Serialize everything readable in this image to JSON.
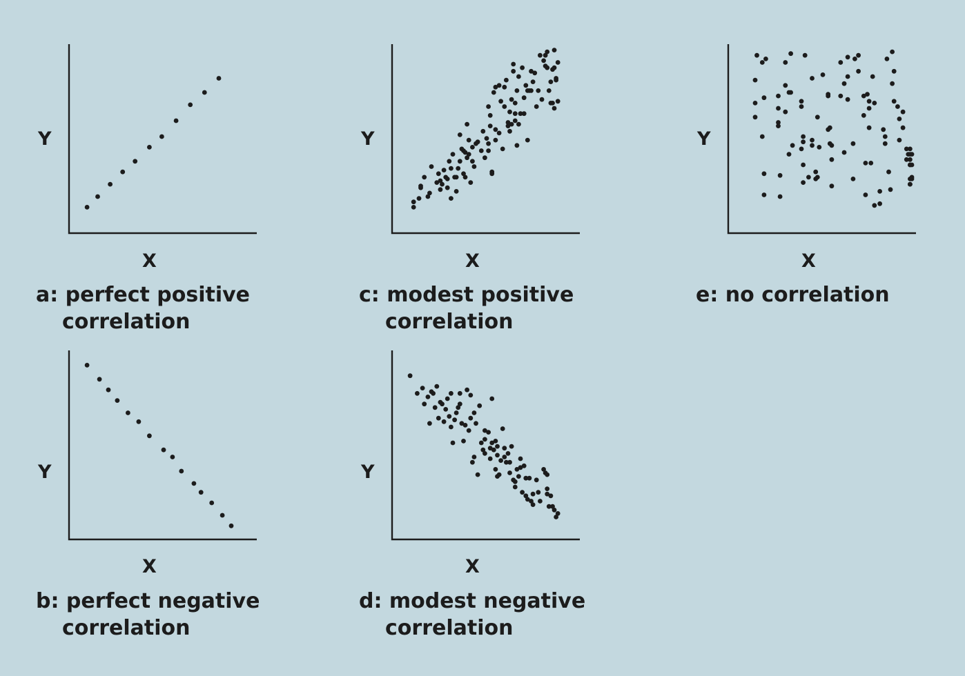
{
  "background": "#c3d8df",
  "ink_color": "#1c1c1c",
  "chart_data": [
    {
      "id": "a",
      "type": "scatter",
      "xlabel": "X",
      "ylabel": "Y",
      "caption": [
        "a: perfect positive",
        "correlation"
      ],
      "xlim": [
        0,
        100
      ],
      "ylim": [
        0,
        100
      ],
      "grid": false,
      "points": [
        [
          7,
          10
        ],
        [
          13,
          16
        ],
        [
          20,
          23
        ],
        [
          27,
          30
        ],
        [
          34,
          36
        ],
        [
          42,
          44
        ],
        [
          49,
          50
        ],
        [
          57,
          59
        ],
        [
          65,
          68
        ],
        [
          73,
          75
        ],
        [
          81,
          83
        ]
      ]
    },
    {
      "id": "b",
      "type": "scatter",
      "xlabel": "X",
      "ylabel": "Y",
      "caption": [
        "b: perfect negative",
        "correlation"
      ],
      "xlim": [
        0,
        100
      ],
      "ylim": [
        0,
        100
      ],
      "grid": false,
      "points": [
        [
          7,
          94
        ],
        [
          14,
          86
        ],
        [
          19,
          80
        ],
        [
          24,
          74
        ],
        [
          30,
          67
        ],
        [
          36,
          62
        ],
        [
          42,
          54
        ],
        [
          50,
          46
        ],
        [
          55,
          42
        ],
        [
          60,
          34
        ],
        [
          67,
          27
        ],
        [
          71,
          22
        ],
        [
          77,
          16
        ],
        [
          83,
          9
        ],
        [
          88,
          3
        ]
      ]
    },
    {
      "id": "c",
      "type": "scatter",
      "xlabel": "X",
      "ylabel": "Y",
      "caption": [
        "c: modest positive",
        "correlation"
      ],
      "xlim": [
        0,
        100
      ],
      "ylim": [
        0,
        100
      ],
      "grid": false,
      "points": [
        [
          9,
          10
        ],
        [
          9,
          13
        ],
        [
          12,
          15
        ],
        [
          13,
          21
        ],
        [
          13,
          22
        ],
        [
          15,
          27
        ],
        [
          17,
          16
        ],
        [
          18,
          18
        ],
        [
          19,
          33
        ],
        [
          22,
          24
        ],
        [
          23,
          29
        ],
        [
          24,
          25
        ],
        [
          24,
          20
        ],
        [
          25,
          23
        ],
        [
          26,
          31
        ],
        [
          27,
          27
        ],
        [
          28,
          26
        ],
        [
          28,
          21
        ],
        [
          29,
          36
        ],
        [
          30,
          15
        ],
        [
          30,
          32
        ],
        [
          31,
          40
        ],
        [
          32,
          27
        ],
        [
          33,
          19
        ],
        [
          33,
          27
        ],
        [
          34,
          32
        ],
        [
          35,
          36
        ],
        [
          35,
          51
        ],
        [
          36,
          43
        ],
        [
          37,
          29
        ],
        [
          37,
          42
        ],
        [
          38,
          41
        ],
        [
          38,
          27
        ],
        [
          39,
          38
        ],
        [
          39,
          57
        ],
        [
          40,
          40
        ],
        [
          40,
          48
        ],
        [
          41,
          24
        ],
        [
          42,
          36
        ],
        [
          42,
          44
        ],
        [
          43,
          33
        ],
        [
          44,
          46
        ],
        [
          45,
          47
        ],
        [
          47,
          42
        ],
        [
          48,
          53
        ],
        [
          49,
          38
        ],
        [
          50,
          49
        ],
        [
          51,
          46
        ],
        [
          51,
          42
        ],
        [
          51,
          67
        ],
        [
          52,
          56
        ],
        [
          52,
          62
        ],
        [
          53,
          30
        ],
        [
          53,
          29
        ],
        [
          54,
          75
        ],
        [
          55,
          54
        ],
        [
          55,
          48
        ],
        [
          55,
          78
        ],
        [
          57,
          79
        ],
        [
          57,
          52
        ],
        [
          58,
          70
        ],
        [
          59,
          43
        ],
        [
          60,
          78
        ],
        [
          60,
          67
        ],
        [
          61,
          82
        ],
        [
          62,
          58
        ],
        [
          62,
          56
        ],
        [
          63,
          64
        ],
        [
          63,
          53
        ],
        [
          64,
          57
        ],
        [
          64,
          71
        ],
        [
          65,
          91
        ],
        [
          65,
          87
        ],
        [
          66,
          59
        ],
        [
          66,
          63
        ],
        [
          66,
          69
        ],
        [
          67,
          45
        ],
        [
          67,
          76
        ],
        [
          68,
          57
        ],
        [
          68,
          84
        ],
        [
          69,
          63
        ],
        [
          70,
          89
        ],
        [
          71,
          63
        ],
        [
          71,
          72
        ],
        [
          72,
          79
        ],
        [
          73,
          48
        ],
        [
          73,
          76
        ],
        [
          74,
          76
        ],
        [
          75,
          76
        ],
        [
          75,
          87
        ],
        [
          76,
          81
        ],
        [
          77,
          86
        ],
        [
          78,
          67
        ],
        [
          79,
          76
        ],
        [
          80,
          96
        ],
        [
          81,
          71
        ],
        [
          82,
          93
        ],
        [
          83,
          96
        ],
        [
          83,
          90
        ],
        [
          84,
          89
        ],
        [
          84,
          98
        ],
        [
          85,
          76
        ],
        [
          86,
          69
        ],
        [
          86,
          81
        ],
        [
          87,
          88
        ],
        [
          87,
          69
        ],
        [
          88,
          99
        ],
        [
          88,
          89
        ],
        [
          88,
          66
        ],
        [
          89,
          82
        ],
        [
          89,
          83
        ],
        [
          90,
          92
        ],
        [
          90,
          70
        ]
      ]
    },
    {
      "id": "d",
      "type": "scatter",
      "xlabel": "X",
      "ylabel": "Y",
      "caption": [
        "d: modest negative",
        "correlation"
      ],
      "xlim": [
        0,
        100
      ],
      "ylim": [
        0,
        100
      ],
      "grid": false,
      "points": [
        [
          7,
          88
        ],
        [
          11,
          78
        ],
        [
          14,
          81
        ],
        [
          15,
          72
        ],
        [
          17,
          76
        ],
        [
          18,
          61
        ],
        [
          19,
          79
        ],
        [
          20,
          78
        ],
        [
          21,
          70
        ],
        [
          22,
          82
        ],
        [
          23,
          64
        ],
        [
          24,
          73
        ],
        [
          25,
          72
        ],
        [
          26,
          62
        ],
        [
          27,
          69
        ],
        [
          28,
          75
        ],
        [
          29,
          65
        ],
        [
          30,
          59
        ],
        [
          30,
          78
        ],
        [
          31,
          50
        ],
        [
          32,
          63
        ],
        [
          33,
          67
        ],
        [
          34,
          70
        ],
        [
          35,
          72
        ],
        [
          35,
          78
        ],
        [
          36,
          61
        ],
        [
          37,
          51
        ],
        [
          38,
          60
        ],
        [
          39,
          80
        ],
        [
          40,
          57
        ],
        [
          41,
          64
        ],
        [
          41,
          77
        ],
        [
          42,
          39
        ],
        [
          43,
          42
        ],
        [
          43,
          67
        ],
        [
          44,
          61
        ],
        [
          45,
          32
        ],
        [
          46,
          71
        ],
        [
          47,
          50
        ],
        [
          48,
          46
        ],
        [
          49,
          44
        ],
        [
          49,
          52
        ],
        [
          49,
          57
        ],
        [
          51,
          56
        ],
        [
          52,
          41
        ],
        [
          52,
          47
        ],
        [
          53,
          50
        ],
        [
          53,
          75
        ],
        [
          54,
          46
        ],
        [
          55,
          51
        ],
        [
          55,
          35
        ],
        [
          56,
          31
        ],
        [
          56,
          43
        ],
        [
          56,
          48
        ],
        [
          57,
          32
        ],
        [
          58,
          40
        ],
        [
          59,
          58
        ],
        [
          60,
          42
        ],
        [
          60,
          47
        ],
        [
          61,
          39
        ],
        [
          62,
          44
        ],
        [
          63,
          39
        ],
        [
          63,
          33
        ],
        [
          64,
          48
        ],
        [
          65,
          29
        ],
        [
          66,
          28
        ],
        [
          66,
          25
        ],
        [
          67,
          35
        ],
        [
          68,
          31
        ],
        [
          69,
          41
        ],
        [
          69,
          36
        ],
        [
          70,
          22
        ],
        [
          71,
          37
        ],
        [
          72,
          30
        ],
        [
          72,
          20
        ],
        [
          73,
          18
        ],
        [
          74,
          30
        ],
        [
          75,
          17
        ],
        [
          76,
          21
        ],
        [
          76,
          15
        ],
        [
          78,
          29
        ],
        [
          79,
          22
        ],
        [
          80,
          17
        ],
        [
          82,
          35
        ],
        [
          83,
          33
        ],
        [
          84,
          32
        ],
        [
          84,
          24
        ],
        [
          84,
          21
        ],
        [
          85,
          14
        ],
        [
          86,
          20
        ],
        [
          87,
          14
        ],
        [
          88,
          12
        ],
        [
          89,
          8
        ],
        [
          90,
          10
        ]
      ]
    },
    {
      "id": "e",
      "type": "scatter",
      "xlabel": "X",
      "ylabel": "Y",
      "caption": [
        "e: no correlation"
      ],
      "xlim": [
        0,
        100
      ],
      "ylim": [
        0,
        100
      ],
      "grid": false,
      "points": [
        [
          12,
          82
        ],
        [
          12,
          69
        ],
        [
          12,
          61
        ],
        [
          13,
          96
        ],
        [
          16,
          92
        ],
        [
          16,
          50
        ],
        [
          17,
          72
        ],
        [
          17,
          17
        ],
        [
          17,
          29
        ],
        [
          18,
          94
        ],
        [
          25,
          73
        ],
        [
          25,
          66
        ],
        [
          25,
          56
        ],
        [
          25,
          58
        ],
        [
          26,
          16
        ],
        [
          26,
          28
        ],
        [
          29,
          92
        ],
        [
          29,
          79
        ],
        [
          29,
          64
        ],
        [
          31,
          75
        ],
        [
          31,
          40
        ],
        [
          32,
          97
        ],
        [
          32,
          75
        ],
        [
          33,
          45
        ],
        [
          38,
          67
        ],
        [
          38,
          70
        ],
        [
          38,
          43
        ],
        [
          39,
          50
        ],
        [
          39,
          24
        ],
        [
          39,
          34
        ],
        [
          39,
          47
        ],
        [
          40,
          96
        ],
        [
          42,
          27
        ],
        [
          44,
          83
        ],
        [
          44,
          48
        ],
        [
          44,
          45
        ],
        [
          46,
          30
        ],
        [
          46,
          26
        ],
        [
          47,
          61
        ],
        [
          47,
          27
        ],
        [
          48,
          44
        ],
        [
          50,
          85
        ],
        [
          53,
          74
        ],
        [
          53,
          54
        ],
        [
          53,
          73
        ],
        [
          54,
          46
        ],
        [
          54,
          55
        ],
        [
          55,
          45
        ],
        [
          55,
          37
        ],
        [
          55,
          22
        ],
        [
          60,
          92
        ],
        [
          60,
          73
        ],
        [
          62,
          41
        ],
        [
          62,
          80
        ],
        [
          64,
          95
        ],
        [
          64,
          84
        ],
        [
          64,
          71
        ],
        [
          67,
          46
        ],
        [
          67,
          26
        ],
        [
          68,
          94
        ],
        [
          70,
          96
        ],
        [
          70,
          87
        ],
        [
          73,
          62
        ],
        [
          73,
          73
        ],
        [
          74,
          35
        ],
        [
          74,
          17
        ],
        [
          75,
          74
        ],
        [
          76,
          70
        ],
        [
          76,
          66
        ],
        [
          76,
          55
        ],
        [
          77,
          35
        ],
        [
          78,
          84
        ],
        [
          79,
          69
        ],
        [
          79,
          11
        ],
        [
          82,
          12
        ],
        [
          82,
          19
        ],
        [
          84,
          54
        ],
        [
          85,
          50
        ],
        [
          85,
          46
        ],
        [
          86,
          94
        ],
        [
          87,
          30
        ],
        [
          88,
          20
        ],
        [
          89,
          98
        ],
        [
          89,
          80
        ],
        [
          90,
          87
        ],
        [
          90,
          70
        ],
        [
          92,
          67
        ],
        [
          93,
          60
        ],
        [
          93,
          48
        ],
        [
          95,
          55
        ],
        [
          95,
          64
        ],
        [
          97,
          37
        ],
        [
          97,
          43
        ],
        [
          98,
          40
        ],
        [
          99,
          34
        ],
        [
          99,
          26
        ],
        [
          99,
          23
        ],
        [
          99,
          23
        ],
        [
          99,
          34
        ],
        [
          99,
          37
        ],
        [
          99,
          40
        ],
        [
          99,
          43
        ],
        [
          100,
          40
        ],
        [
          100,
          27
        ],
        [
          100,
          26
        ],
        [
          100,
          34
        ]
      ]
    }
  ]
}
